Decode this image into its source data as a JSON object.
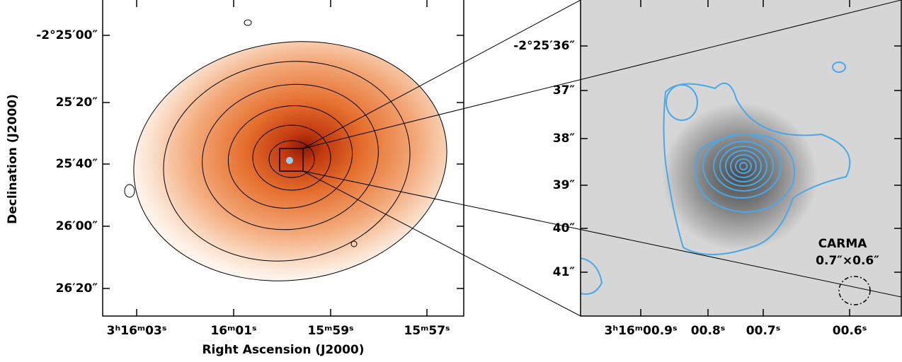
{
  "left_panel": {
    "y_axis": {
      "title": "Declination (J2000)",
      "tick_labels": [
        "-2°25′00″",
        "25′20″",
        "25′40″",
        "26′00″",
        "26′20″"
      ]
    },
    "x_axis": {
      "title": "Right Ascension (J2000)",
      "tick_labels": [
        "3ʰ16ᵐ03ˢ",
        "16ᵐ01ˢ",
        "15ᵐ59ˢ",
        "15ᵐ57ˢ"
      ]
    }
  },
  "right_panel": {
    "y_axis": {
      "tick_labels": [
        "-2°25′36″",
        "37″",
        "38″",
        "39″",
        "40″",
        "41″"
      ]
    },
    "x_axis": {
      "tick_labels": [
        "3ʰ16ᵐ00.9ˢ",
        "00.8ˢ",
        "00.7ˢ",
        "00.6ˢ"
      ]
    },
    "annotation": {
      "instrument": "CARMA",
      "beam": "0.7″×0.6″"
    }
  }
}
